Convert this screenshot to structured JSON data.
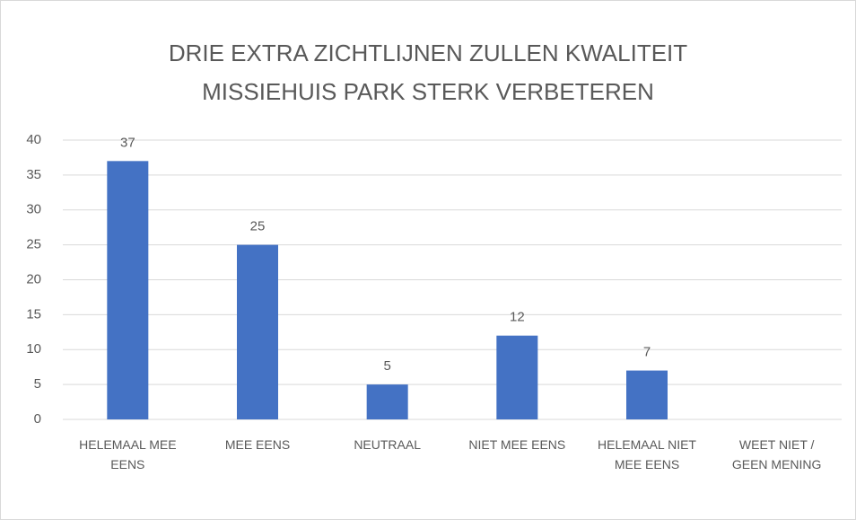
{
  "chart_data": {
    "type": "bar",
    "title": "DRIE EXTRA ZICHTLIJNEN ZULLEN KWALITEIT MISSIEHUIS PARK STERK VERBETEREN",
    "categories": [
      "HELEMAAL MEE EENS",
      "MEE EENS",
      "NEUTRAAL",
      "NIET MEE EENS",
      "HELEMAAL NIET MEE EENS",
      "WEET NIET / GEEN MENING"
    ],
    "values": [
      37,
      25,
      5,
      12,
      7,
      null
    ],
    "color": "#4472c4",
    "ylim": [
      0,
      40
    ],
    "yticks": [
      0,
      5,
      10,
      15,
      20,
      25,
      30,
      35,
      40
    ],
    "grid": true,
    "data_labels": true
  }
}
